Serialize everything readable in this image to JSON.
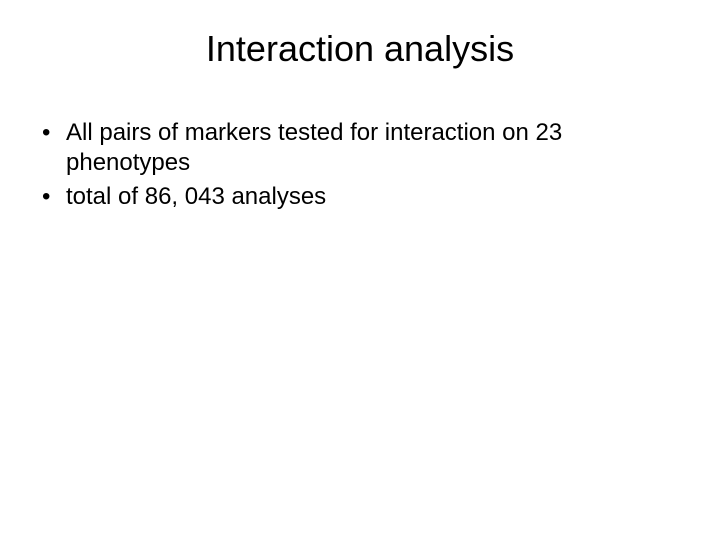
{
  "slide": {
    "title": "Interaction analysis",
    "bullets": [
      "All pairs of markers tested for interaction on 23 phenotypes",
      " total of 86, 043 analyses"
    ],
    "style": {
      "background_color": "#ffffff",
      "text_color": "#000000",
      "title_fontsize": 36,
      "title_fontweight": 400,
      "body_fontsize": 24,
      "line_height": 1.25,
      "font_family": "Arial"
    }
  }
}
